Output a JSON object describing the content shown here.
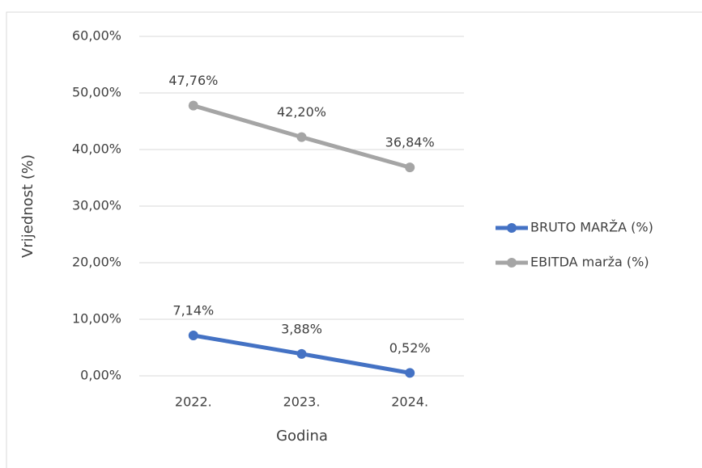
{
  "chart_data": {
    "type": "line",
    "categories": [
      "2022.",
      "2023.",
      "2024."
    ],
    "series": [
      {
        "name": "BRUTO MARŽA (%)",
        "color": "#4472c4",
        "values": [
          7.14,
          3.88,
          0.52
        ],
        "value_labels": [
          "7,14%",
          "3,88%",
          "0,52%"
        ]
      },
      {
        "name": "EBITDA marža (%)",
        "color": "#a5a5a5",
        "values": [
          47.76,
          42.2,
          36.84
        ],
        "value_labels": [
          "47,76%",
          "42,20%",
          "36,84%"
        ]
      }
    ],
    "ylim": [
      0,
      60
    ],
    "yticks": [
      {
        "value": 0,
        "label": "0,00%"
      },
      {
        "value": 10,
        "label": "10,00%"
      },
      {
        "value": 20,
        "label": "20,00%"
      },
      {
        "value": 30,
        "label": "30,00%"
      },
      {
        "value": 40,
        "label": "40,00%"
      },
      {
        "value": 50,
        "label": "50,00%"
      },
      {
        "value": 60,
        "label": "60,00%"
      }
    ],
    "xlabel": "Godina",
    "ylabel": "Vrijednost (%)",
    "grid": true,
    "legend": "right"
  }
}
